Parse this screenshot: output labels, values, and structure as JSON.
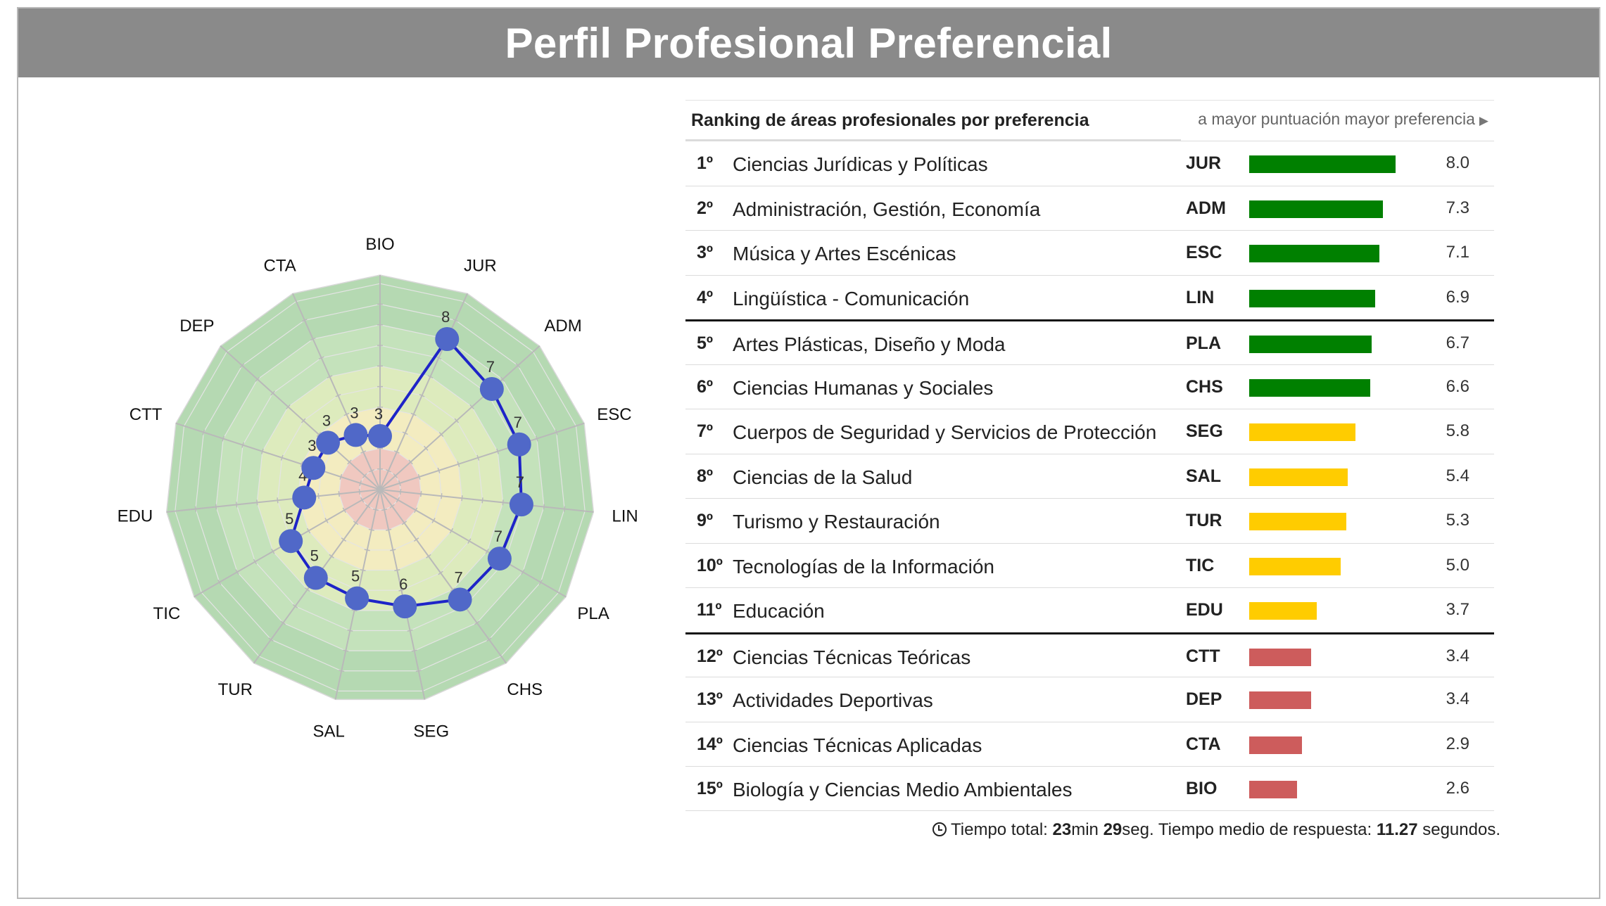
{
  "title": "Perfil Profesional Preferencial",
  "colors": {
    "header_bg": "#8a8a8a",
    "high": "#008000",
    "mid": "#ffcc00",
    "low": "#cd5c5c",
    "series_line": "#1e24c8",
    "series_point": "#5068c8"
  },
  "ranking": {
    "heading": "Ranking de áreas profesionales por preferencia",
    "note": "a mayor puntuación mayor preferencia",
    "note_icon": "triangle-right-icon",
    "rows": [
      {
        "rank": "1º",
        "name": "Ciencias Jurídicas y Políticas",
        "code": "JUR",
        "score": "8.0",
        "value": 8.0,
        "level": "high"
      },
      {
        "rank": "2º",
        "name": "Administración, Gestión, Economía",
        "code": "ADM",
        "score": "7.3",
        "value": 7.3,
        "level": "high"
      },
      {
        "rank": "3º",
        "name": "Música y Artes Escénicas",
        "code": "ESC",
        "score": "7.1",
        "value": 7.1,
        "level": "high"
      },
      {
        "rank": "4º",
        "name": "Lingüística - Comunicación",
        "code": "LIN",
        "score": "6.9",
        "value": 6.9,
        "level": "high"
      },
      {
        "rank": "5º",
        "name": "Artes Plásticas, Diseño y Moda",
        "code": "PLA",
        "score": "6.7",
        "value": 6.7,
        "level": "high"
      },
      {
        "rank": "6º",
        "name": "Ciencias Humanas y Sociales",
        "code": "CHS",
        "score": "6.6",
        "value": 6.6,
        "level": "high"
      },
      {
        "rank": "7º",
        "name": "Cuerpos de Seguridad y Servicios de Protección",
        "code": "SEG",
        "score": "5.8",
        "value": 5.8,
        "level": "mid"
      },
      {
        "rank": "8º",
        "name": "Ciencias de la Salud",
        "code": "SAL",
        "score": "5.4",
        "value": 5.4,
        "level": "mid"
      },
      {
        "rank": "9º",
        "name": "Turismo y Restauración",
        "code": "TUR",
        "score": "5.3",
        "value": 5.3,
        "level": "mid"
      },
      {
        "rank": "10º",
        "name": "Tecnologías de la Información",
        "code": "TIC",
        "score": "5.0",
        "value": 5.0,
        "level": "mid"
      },
      {
        "rank": "11º",
        "name": "Educación",
        "code": "EDU",
        "score": "3.7",
        "value": 3.7,
        "level": "mid"
      },
      {
        "rank": "12º",
        "name": "Ciencias Técnicas Teóricas",
        "code": "CTT",
        "score": "3.4",
        "value": 3.4,
        "level": "low"
      },
      {
        "rank": "13º",
        "name": "Actividades Deportivas",
        "code": "DEP",
        "score": "3.4",
        "value": 3.4,
        "level": "low"
      },
      {
        "rank": "14º",
        "name": "Ciencias Técnicas Aplicadas",
        "code": "CTA",
        "score": "2.9",
        "value": 2.9,
        "level": "low"
      },
      {
        "rank": "15º",
        "name": "Biología y Ciencias Medio Ambientales",
        "code": "BIO",
        "score": "2.6",
        "value": 2.6,
        "level": "low"
      }
    ],
    "group_starts": [
      4,
      11
    ]
  },
  "footer": {
    "icon": "clock-icon",
    "label_total": "Tiempo total:",
    "minutes": "23",
    "min_unit": "min",
    "seconds": "29",
    "seg_unit": "seg.",
    "label_avg": "Tiempo medio de respuesta:",
    "avg": "11.27",
    "avg_unit": "segundos."
  },
  "chart_data": [
    {
      "type": "radar",
      "title": "",
      "axes": [
        "BIO",
        "JUR",
        "ADM",
        "ESC",
        "LIN",
        "PLA",
        "CHS",
        "SEG",
        "SAL",
        "TUR",
        "TIC",
        "EDU",
        "CTT",
        "DEP",
        "CTA"
      ],
      "values": [
        2.6,
        8.0,
        7.3,
        7.1,
        6.9,
        6.7,
        6.6,
        5.8,
        5.4,
        5.3,
        5.0,
        3.7,
        3.4,
        3.4,
        2.9
      ],
      "point_labels": [
        "3",
        "8",
        "7",
        "7",
        "7",
        "7",
        "7",
        "6",
        "5",
        "5",
        "5",
        "4",
        "3",
        "3",
        "3"
      ],
      "range": [
        0,
        10
      ],
      "grid": true,
      "bands": [
        {
          "from": 0,
          "to": 2,
          "color": "#f0c8c0"
        },
        {
          "from": 2,
          "to": 4,
          "color": "#f3ecc0"
        },
        {
          "from": 4,
          "to": 6,
          "color": "#ddebbd"
        },
        {
          "from": 6,
          "to": 8,
          "color": "#c4e2bb"
        },
        {
          "from": 8,
          "to": 10,
          "color": "#b5d9b2"
        }
      ]
    },
    {
      "type": "bar",
      "orientation": "horizontal",
      "categories": [
        "JUR",
        "ADM",
        "ESC",
        "LIN",
        "PLA",
        "CHS",
        "SEG",
        "SAL",
        "TUR",
        "TIC",
        "EDU",
        "CTT",
        "DEP",
        "CTA",
        "BIO"
      ],
      "values": [
        8.0,
        7.3,
        7.1,
        6.9,
        6.7,
        6.6,
        5.8,
        5.4,
        5.3,
        5.0,
        3.7,
        3.4,
        3.4,
        2.9,
        2.6
      ],
      "xlim": [
        0,
        10
      ]
    }
  ]
}
